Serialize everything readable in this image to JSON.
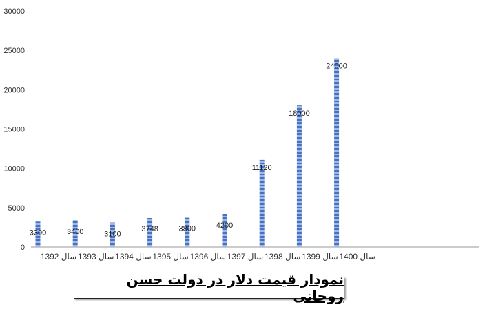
{
  "chart_data": {
    "type": "bar",
    "title": "نمودار قیمت دلار در دولت حسن روحانی",
    "categories": [
      "سال 1392",
      "سال 1393",
      "سال 1394",
      "سال 1395",
      "سال 1396",
      "سال 1397",
      "سال 1398",
      "سال 1399",
      "سال 1400"
    ],
    "values": [
      3300,
      3400,
      3100,
      3748,
      3800,
      4200,
      11120,
      18000,
      24000
    ],
    "data_labels": [
      "3300",
      "3400",
      "3100",
      "3748",
      "3800",
      "4200",
      "11120",
      "18000",
      "24000"
    ],
    "ylim": [
      0,
      30000
    ],
    "yticks": [
      "0",
      "5000",
      "10000",
      "15000",
      "20000",
      "25000",
      "30000"
    ],
    "grid": false,
    "bar_color": "#4472C4",
    "xlabel": "",
    "ylabel": ""
  }
}
